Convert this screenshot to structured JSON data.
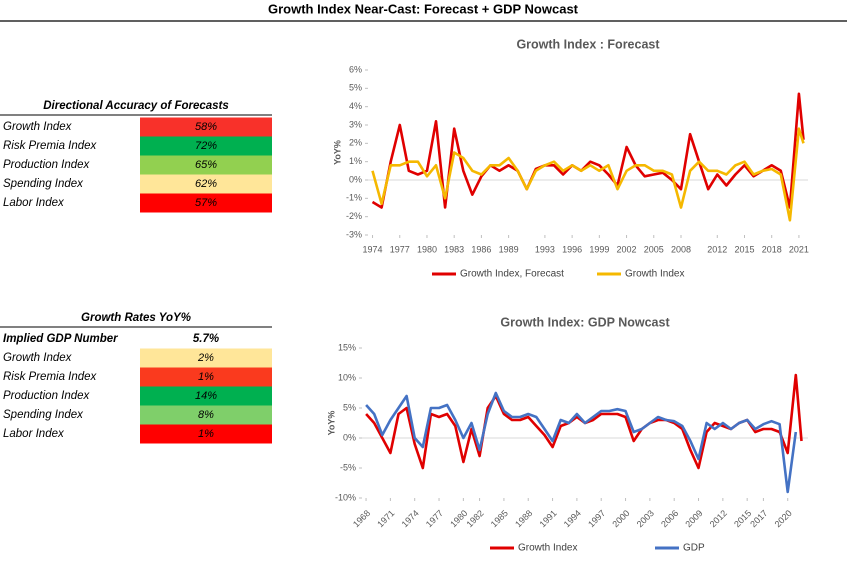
{
  "title": "Growth Index Near-Cast: Forecast + GDP Nowcast",
  "tables": [
    {
      "title": "Directional Accuracy of Forecasts",
      "rows": [
        {
          "label": "Growth Index",
          "value": "58%",
          "color": "#f8312a"
        },
        {
          "label": "Risk Premia Index",
          "value": "72%",
          "color": "#00b050"
        },
        {
          "label": "Production Index",
          "value": "65%",
          "color": "#92d050"
        },
        {
          "label": "Spending Index",
          "value": "62%",
          "color": "#ffe699"
        },
        {
          "label": "Labor Index",
          "value": "57%",
          "color": "#ff0000"
        }
      ]
    },
    {
      "title": "Growth Rates YoY%",
      "implied": {
        "label": "Implied GDP Number",
        "value": "5.7%"
      },
      "rows": [
        {
          "label": "Growth Index",
          "value": "2%",
          "color": "#ffe699"
        },
        {
          "label": "Risk Premia Index",
          "value": "1%",
          "color": "#fa3a1e"
        },
        {
          "label": "Production Index",
          "value": "14%",
          "color": "#00b050"
        },
        {
          "label": "Spending Index",
          "value": "8%",
          "color": "#7fcf6a"
        },
        {
          "label": "Labor Index",
          "value": "1%",
          "color": "#ff0000"
        }
      ]
    }
  ],
  "chart_data": [
    {
      "type": "line",
      "title": "Growth Index : Forecast",
      "y_label": "YoY%",
      "x": [
        1974,
        1975,
        1976,
        1977,
        1978,
        1979,
        1980,
        1981,
        1982,
        1983,
        1984,
        1985,
        1986,
        1987,
        1988,
        1989,
        1990,
        1991,
        1992,
        1993,
        1994,
        1995,
        1996,
        1997,
        1998,
        1999,
        2000,
        2001,
        2002,
        2003,
        2004,
        2005,
        2006,
        2007,
        2008,
        2009,
        2010,
        2011,
        2012,
        2013,
        2014,
        2015,
        2016,
        2017,
        2018,
        2019,
        2020,
        2021,
        2021.5
      ],
      "xlim": [
        1973.5,
        2022
      ],
      "xticks": [
        1974,
        1977,
        1980,
        1983,
        1986,
        1989,
        1993,
        1996,
        1999,
        2002,
        2005,
        2008,
        2012,
        2015,
        2018,
        2021
      ],
      "ylim": [
        -3,
        6
      ],
      "yticks": [
        {
          "value": -3,
          "label": "-3%"
        },
        {
          "value": -2,
          "label": "-2%"
        },
        {
          "value": -1,
          "label": "-1%"
        },
        {
          "value": 0,
          "label": "0%"
        },
        {
          "value": 1,
          "label": "1%"
        },
        {
          "value": 2,
          "label": "2%"
        },
        {
          "value": 3,
          "label": "3%"
        },
        {
          "value": 4,
          "label": "4%"
        },
        {
          "value": 5,
          "label": "5%"
        },
        {
          "value": 6,
          "label": "6%"
        }
      ],
      "legend": "bottom",
      "series": [
        {
          "name": "Growth Index, Forecast",
          "color": "#e00000",
          "values": [
            -1.2,
            -1.5,
            1.0,
            3.0,
            0.5,
            0.3,
            0.5,
            3.2,
            -1.5,
            2.8,
            0.5,
            -0.8,
            0.2,
            0.8,
            0.5,
            0.8,
            0.5,
            -0.5,
            0.6,
            0.8,
            0.8,
            0.3,
            0.8,
            0.5,
            1.0,
            0.8,
            0.3,
            -0.3,
            1.8,
            0.8,
            0.2,
            0.3,
            0.4,
            0.0,
            -0.5,
            2.5,
            1.0,
            -0.5,
            0.3,
            -0.3,
            0.3,
            0.8,
            0.2,
            0.5,
            0.8,
            0.5,
            -1.5,
            4.7,
            2.2
          ]
        },
        {
          "name": "Growth Index",
          "color": "#f5b800",
          "values": [
            0.5,
            -1.3,
            0.8,
            0.8,
            1.0,
            1.0,
            0.2,
            0.8,
            -1.0,
            1.5,
            1.2,
            0.5,
            0.3,
            0.8,
            0.8,
            1.2,
            0.5,
            -0.5,
            0.5,
            0.8,
            1.0,
            0.5,
            0.8,
            0.5,
            0.8,
            0.5,
            0.8,
            -0.5,
            0.5,
            0.8,
            0.8,
            0.5,
            0.5,
            0.3,
            -1.5,
            0.5,
            1.0,
            0.5,
            0.5,
            0.3,
            0.8,
            1.0,
            0.3,
            0.5,
            0.6,
            0.3,
            -2.2,
            2.8,
            2.0
          ]
        }
      ]
    },
    {
      "type": "line",
      "title": "Growth Index: GDP Nowcast",
      "y_label": "YoY%",
      "x": [
        1968,
        1969,
        1970,
        1971,
        1972,
        1973,
        1974,
        1975,
        1976,
        1977,
        1978,
        1979,
        1980,
        1981,
        1982,
        1983,
        1984,
        1985,
        1986,
        1987,
        1988,
        1989,
        1990,
        1991,
        1992,
        1993,
        1994,
        1995,
        1996,
        1997,
        1998,
        1999,
        2000,
        2001,
        2002,
        2003,
        2004,
        2005,
        2006,
        2007,
        2008,
        2009,
        2010,
        2011,
        2012,
        2013,
        2014,
        2015,
        2016,
        2017,
        2018,
        2019,
        2020,
        2021,
        2021.7
      ],
      "xlim": [
        1967.5,
        2022.5
      ],
      "xticks": [
        1968,
        1971,
        1974,
        1977,
        1980,
        1982,
        1985,
        1988,
        1991,
        1994,
        1997,
        2000,
        2003,
        2006,
        2009,
        2012,
        2015,
        2017,
        2020
      ],
      "ylim": [
        -10,
        15
      ],
      "yticks": [
        {
          "value": -10,
          "label": "-10%"
        },
        {
          "value": -5,
          "label": "-5%"
        },
        {
          "value": 0,
          "label": "0%"
        },
        {
          "value": 5,
          "label": "5%"
        },
        {
          "value": 10,
          "label": "10%"
        },
        {
          "value": 15,
          "label": "15%"
        }
      ],
      "legend": "bottom",
      "series": [
        {
          "name": "Growth Index",
          "color": "#e00000",
          "values": [
            4,
            2.5,
            0,
            -2.5,
            4,
            5,
            -1,
            -5,
            4,
            3.5,
            4,
            2,
            -4,
            1.5,
            -3,
            5,
            7,
            4,
            3,
            3,
            3.5,
            2,
            0.5,
            -1.5,
            2,
            2.5,
            3.5,
            2.5,
            3,
            4,
            4,
            4,
            3.5,
            -0.5,
            1.5,
            2.5,
            3,
            3,
            2.5,
            1.5,
            -2,
            -5,
            1,
            2.5,
            2,
            1.5,
            2.5,
            3,
            1,
            1.5,
            1.5,
            1,
            -2.5,
            10.5,
            -0.5
          ]
        },
        {
          "name": "GDP",
          "color": "#4472c4",
          "values": [
            5.5,
            4,
            0.5,
            3,
            5,
            7,
            0,
            -1.5,
            5,
            5,
            5.5,
            3,
            0,
            2.5,
            -2,
            4,
            7.5,
            4.5,
            3.5,
            3.5,
            4,
            3.5,
            1.5,
            -0.5,
            3,
            2.5,
            4,
            2.5,
            3.5,
            4.5,
            4.5,
            4.8,
            4.5,
            1,
            1.5,
            2.5,
            3.5,
            3,
            2.8,
            2,
            -0.5,
            -3.5,
            2.5,
            1.5,
            2.5,
            1.5,
            2.5,
            3,
            1.5,
            2.3,
            2.8,
            2.3,
            -9,
            1,
            null
          ]
        }
      ]
    }
  ]
}
